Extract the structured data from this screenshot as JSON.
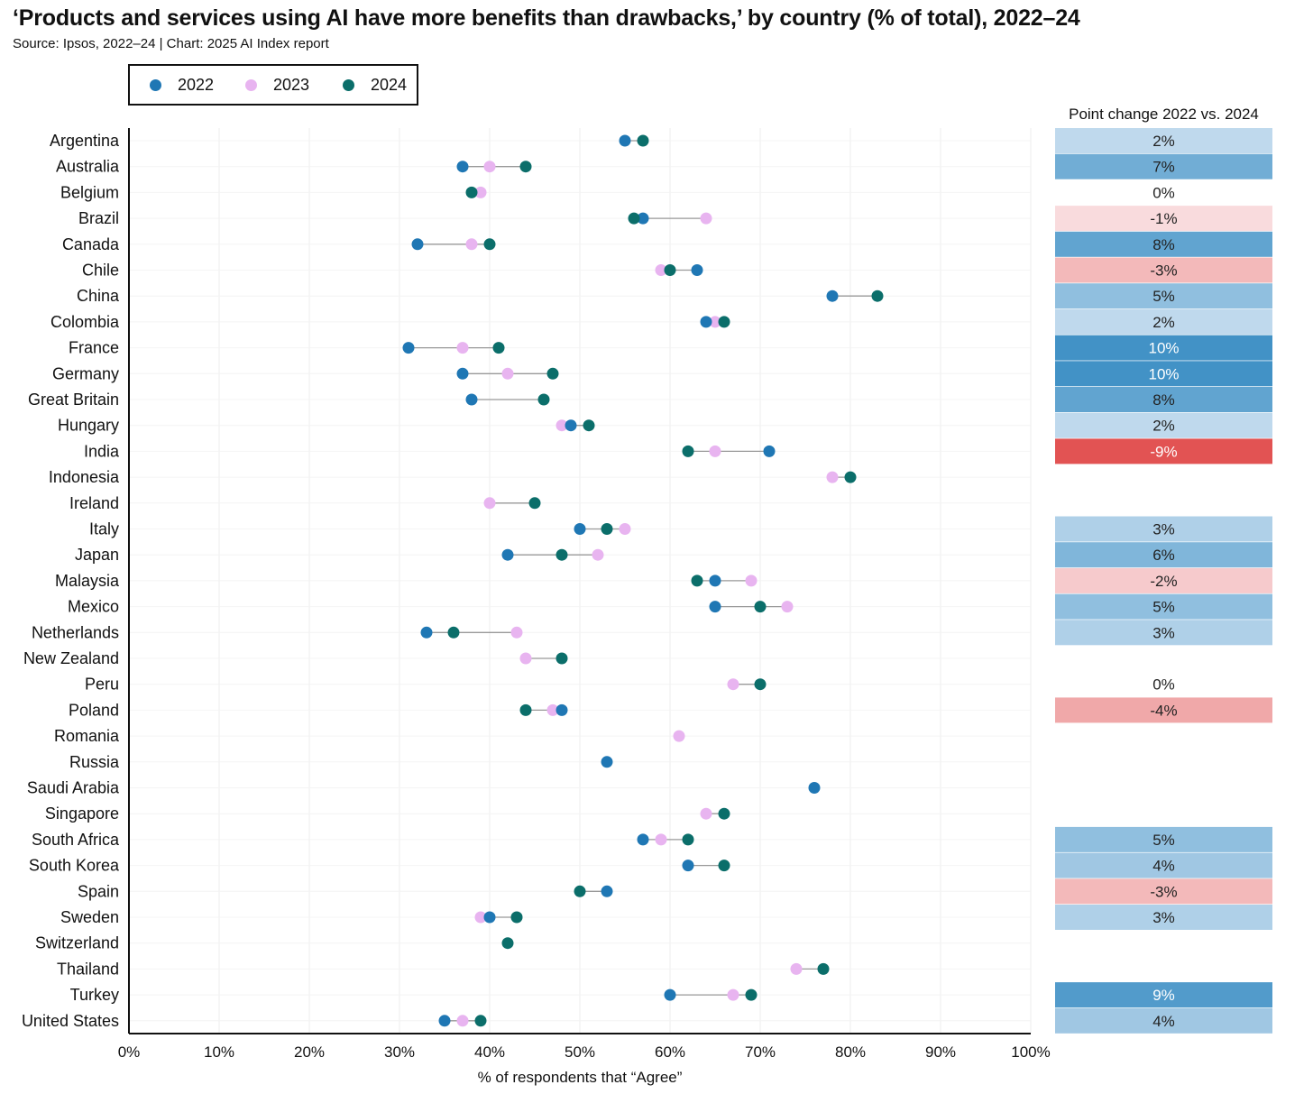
{
  "title": "‘Products and services using AI have more benefits than drawbacks,’ by country (% of total), 2022–24",
  "subtitle": "Source: Ipsos, 2022–24 | Chart: 2025 AI Index report",
  "colors": {
    "y2022": "#1f77b4",
    "y2023": "#e8b4f0",
    "y2024": "#0b6e6a",
    "connector": "#999999"
  },
  "chart_data": {
    "type": "dot-plot",
    "xlabel": "% of respondents that “Agree”",
    "xlim": [
      0,
      100
    ],
    "x_ticks": [
      "0%",
      "10%",
      "20%",
      "30%",
      "40%",
      "50%",
      "60%",
      "70%",
      "80%",
      "90%",
      "100%"
    ],
    "legend": [
      "2022",
      "2023",
      "2024"
    ],
    "change_header": "Point change 2022 vs. 2024",
    "rows": [
      {
        "country": "Argentina",
        "y2022": 55,
        "y2023": null,
        "y2024": 57,
        "change": "2%",
        "change_val": 2
      },
      {
        "country": "Australia",
        "y2022": 37,
        "y2023": 40,
        "y2024": 44,
        "change": "7%",
        "change_val": 7
      },
      {
        "country": "Belgium",
        "y2022": null,
        "y2023": 39,
        "y2024": 38,
        "change": "0%",
        "change_val": 0
      },
      {
        "country": "Brazil",
        "y2022": 57,
        "y2023": 64,
        "y2024": 56,
        "change": "-1%",
        "change_val": -1
      },
      {
        "country": "Canada",
        "y2022": 32,
        "y2023": 38,
        "y2024": 40,
        "change": "8%",
        "change_val": 8
      },
      {
        "country": "Chile",
        "y2022": 63,
        "y2023": 59,
        "y2024": 60,
        "change": "-3%",
        "change_val": -3
      },
      {
        "country": "China",
        "y2022": 78,
        "y2023": null,
        "y2024": 83,
        "change": "5%",
        "change_val": 5
      },
      {
        "country": "Colombia",
        "y2022": 64,
        "y2023": 65,
        "y2024": 66,
        "change": "2%",
        "change_val": 2
      },
      {
        "country": "France",
        "y2022": 31,
        "y2023": 37,
        "y2024": 41,
        "change": "10%",
        "change_val": 10
      },
      {
        "country": "Germany",
        "y2022": 37,
        "y2023": 42,
        "y2024": 47,
        "change": "10%",
        "change_val": 10
      },
      {
        "country": "Great Britain",
        "y2022": 38,
        "y2023": null,
        "y2024": 46,
        "change": "8%",
        "change_val": 8
      },
      {
        "country": "Hungary",
        "y2022": 49,
        "y2023": 48,
        "y2024": 51,
        "change": "2%",
        "change_val": 2
      },
      {
        "country": "India",
        "y2022": 71,
        "y2023": 65,
        "y2024": 62,
        "change": "-9%",
        "change_val": -9
      },
      {
        "country": "Indonesia",
        "y2022": null,
        "y2023": 78,
        "y2024": 80,
        "change": null,
        "change_val": null
      },
      {
        "country": "Ireland",
        "y2022": null,
        "y2023": 40,
        "y2024": 45,
        "change": null,
        "change_val": null
      },
      {
        "country": "Italy",
        "y2022": 50,
        "y2023": 55,
        "y2024": 53,
        "change": "3%",
        "change_val": 3
      },
      {
        "country": "Japan",
        "y2022": 42,
        "y2023": 52,
        "y2024": 48,
        "change": "6%",
        "change_val": 6
      },
      {
        "country": "Malaysia",
        "y2022": 65,
        "y2023": 69,
        "y2024": 63,
        "change": "-2%",
        "change_val": -2
      },
      {
        "country": "Mexico",
        "y2022": 65,
        "y2023": 73,
        "y2024": 70,
        "change": "5%",
        "change_val": 5
      },
      {
        "country": "Netherlands",
        "y2022": 33,
        "y2023": 43,
        "y2024": 36,
        "change": "3%",
        "change_val": 3
      },
      {
        "country": "New Zealand",
        "y2022": null,
        "y2023": 44,
        "y2024": 48,
        "change": null,
        "change_val": null
      },
      {
        "country": "Peru",
        "y2022": null,
        "y2023": 67,
        "y2024": 70,
        "change": "0%",
        "change_val": 0
      },
      {
        "country": "Poland",
        "y2022": 48,
        "y2023": 47,
        "y2024": 44,
        "change": "-4%",
        "change_val": -4
      },
      {
        "country": "Romania",
        "y2022": null,
        "y2023": 61,
        "y2024": null,
        "change": null,
        "change_val": null
      },
      {
        "country": "Russia",
        "y2022": 53,
        "y2023": null,
        "y2024": null,
        "change": null,
        "change_val": null
      },
      {
        "country": "Saudi Arabia",
        "y2022": 76,
        "y2023": null,
        "y2024": null,
        "change": null,
        "change_val": null
      },
      {
        "country": "Singapore",
        "y2022": null,
        "y2023": 64,
        "y2024": 66,
        "change": null,
        "change_val": null
      },
      {
        "country": "South Africa",
        "y2022": 57,
        "y2023": 59,
        "y2024": 62,
        "change": "5%",
        "change_val": 5
      },
      {
        "country": "South Korea",
        "y2022": 62,
        "y2023": null,
        "y2024": 66,
        "change": "4%",
        "change_val": 4
      },
      {
        "country": "Spain",
        "y2022": 53,
        "y2023": null,
        "y2024": 50,
        "change": "-3%",
        "change_val": -3
      },
      {
        "country": "Sweden",
        "y2022": 40,
        "y2023": 39,
        "y2024": 43,
        "change": "3%",
        "change_val": 3
      },
      {
        "country": "Switzerland",
        "y2022": null,
        "y2023": null,
        "y2024": 42,
        "change": null,
        "change_val": null
      },
      {
        "country": "Thailand",
        "y2022": null,
        "y2023": 74,
        "y2024": 77,
        "change": null,
        "change_val": null
      },
      {
        "country": "Turkey",
        "y2022": 60,
        "y2023": 67,
        "y2024": 69,
        "change": "9%",
        "change_val": 9
      },
      {
        "country": "United States",
        "y2022": 35,
        "y2023": 37,
        "y2024": 39,
        "change": "4%",
        "change_val": 4
      }
    ]
  }
}
